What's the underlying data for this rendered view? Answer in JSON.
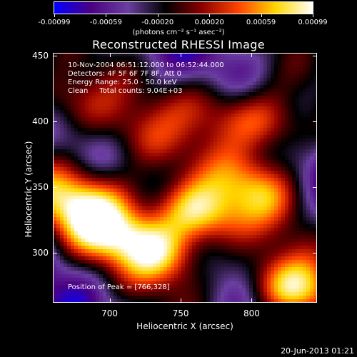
{
  "colorbar": {
    "ticks": [
      "-0.00099",
      "-0.00059",
      "-0.00020",
      "0.00020",
      "0.00059",
      "0.00099"
    ],
    "units": "(photons cm⁻² s⁻¹ asec⁻²)",
    "colors": [
      "#0000ff",
      "#4b0082",
      "#6a3fa0",
      "#000000",
      "#8b0000",
      "#ff4500",
      "#ffd700",
      "#ffffff"
    ]
  },
  "title": "Reconstructed RHESSI Image",
  "info": {
    "time": "10-Nov-2004 06:51:12.000 to 06:52:44.000",
    "detectors": "Detectors: 4F 5F 6F 7F 8F, Att 0",
    "energy": "Energy Range: 25.0 - 50.0 keV",
    "clean": "Clean     Total counts: 9.04E+03",
    "peak": "Position of Peak = [766,328]"
  },
  "footer": "20-Jun-2013 01:21",
  "chart_data": {
    "type": "heatmap",
    "title": "Reconstructed RHESSI Image",
    "xlabel": "Heliocentric X (arcsec)",
    "ylabel": "Heliocentric Y (arcsec)",
    "xlim": [
      660,
      846
    ],
    "ylim": [
      262,
      452
    ],
    "xticks": [
      700,
      750,
      800
    ],
    "yticks": [
      300,
      350,
      400,
      450
    ],
    "colorbar_range": [
      -0.00099,
      0.00099
    ],
    "peak": [
      766,
      328
    ],
    "blobs": [
      {
        "x": 762,
        "y": 330,
        "value": 0.00099
      },
      {
        "x": 826,
        "y": 272,
        "value": 0.00099
      },
      {
        "x": 734,
        "y": 302,
        "value": 0.00085
      },
      {
        "x": 690,
        "y": 320,
        "value": 0.0007
      },
      {
        "x": 812,
        "y": 398,
        "value": 0.0007
      },
      {
        "x": 804,
        "y": 350,
        "value": 0.00059
      },
      {
        "x": 670,
        "y": 415,
        "value": 0.00059
      },
      {
        "x": 720,
        "y": 385,
        "value": 0.0004
      },
      {
        "x": 700,
        "y": 345,
        "value": 0.0004
      },
      {
        "x": 772,
        "y": 410,
        "value": 0.0004
      },
      {
        "x": 665,
        "y": 345,
        "value": 0.0004
      }
    ]
  }
}
